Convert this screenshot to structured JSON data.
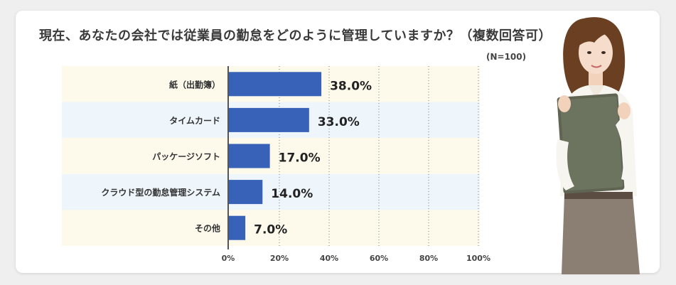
{
  "title": "現在、あなたの会社では従業員の勤怠をどのように管理していますか？（複数回答可）",
  "sample_size": "(N=100)",
  "colors": {
    "bar": "#3762b8",
    "row_odd": "#fdfaec",
    "row_even": "#eef6fb",
    "axis": "#555555",
    "grid": "#777777"
  },
  "illustration": "woman-holding-binder-photo",
  "chart_data": {
    "type": "bar",
    "orientation": "horizontal",
    "title": "現在、あなたの会社では従業員の勤怠をどのように管理していますか？（複数回答可）",
    "categories": [
      "紙（出勤簿）",
      "タイムカード",
      "パッケージソフト",
      "クラウド型の勤怠管理システム",
      "その他"
    ],
    "values": [
      38.0,
      33.0,
      17.0,
      14.0,
      7.0
    ],
    "value_labels": [
      "38.0%",
      "33.0%",
      "17.0%",
      "14.0%",
      "7.0%"
    ],
    "xlim": [
      0,
      100
    ],
    "x_ticks": [
      "0%",
      "20%",
      "40%",
      "60%",
      "80%",
      "100%"
    ],
    "xlabel": "",
    "ylabel": "",
    "grid": "vertical dotted",
    "legend": "none"
  }
}
